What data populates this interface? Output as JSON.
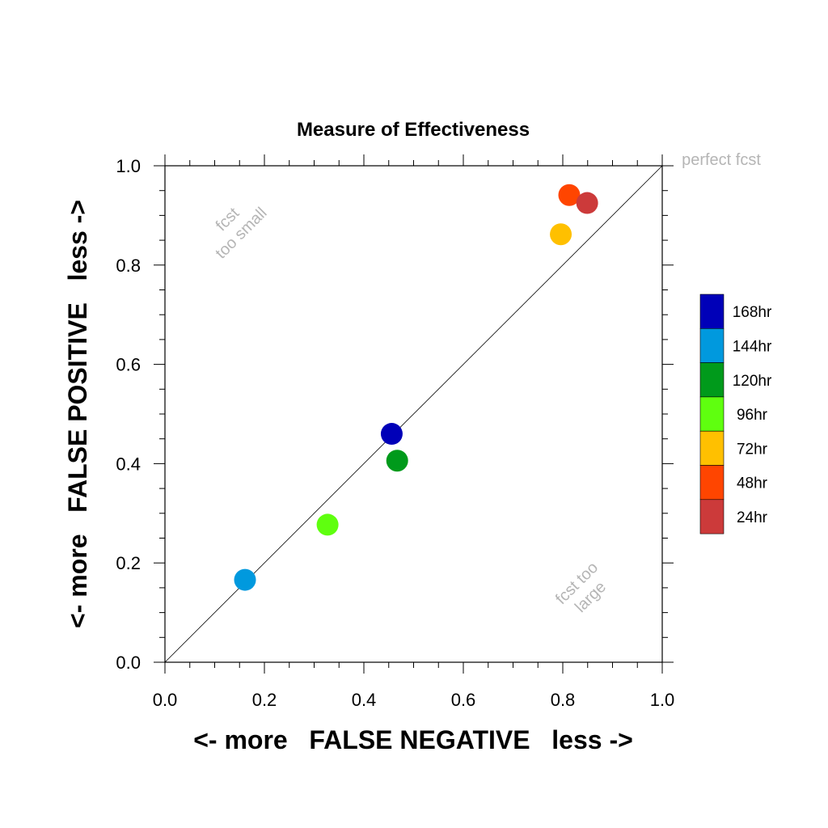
{
  "chart_data": {
    "type": "scatter",
    "title": "Measure of Effectiveness",
    "xlabel": "<- more   FALSE NEGATIVE   less ->",
    "ylabel": "<- more   FALSE POSITIVE   less ->",
    "xlim": [
      0,
      1
    ],
    "ylim": [
      0,
      1
    ],
    "x_ticks": [
      "0.0",
      "0.2",
      "0.4",
      "0.6",
      "0.8",
      "1.0"
    ],
    "y_ticks": [
      "0.0",
      "0.2",
      "0.4",
      "0.6",
      "0.8",
      "1.0"
    ],
    "grid": false,
    "reference_line": {
      "from": [
        0,
        0
      ],
      "to": [
        1,
        1
      ]
    },
    "legend_placement": "right",
    "annotations": {
      "perfect": "perfect fcst",
      "too_small_line1": "fcst",
      "too_small_line2": "too small",
      "too_large_line1": "fcst too",
      "too_large_line2": "large"
    },
    "series": [
      {
        "name": "168hr",
        "color": "#0000b8",
        "x": 0.456,
        "y": 0.46
      },
      {
        "name": "144hr",
        "color": "#0099de",
        "x": 0.161,
        "y": 0.166
      },
      {
        "name": "120hr",
        "color": "#009a1b",
        "x": 0.467,
        "y": 0.406
      },
      {
        "name": "96hr",
        "color": "#5fff0f",
        "x": 0.327,
        "y": 0.277
      },
      {
        "name": "72hr",
        "color": "#ffc000",
        "x": 0.796,
        "y": 0.862
      },
      {
        "name": "48hr",
        "color": "#ff4500",
        "x": 0.813,
        "y": 0.941
      },
      {
        "name": "24hr",
        "color": "#cc3a3a",
        "x": 0.849,
        "y": 0.925
      }
    ]
  }
}
